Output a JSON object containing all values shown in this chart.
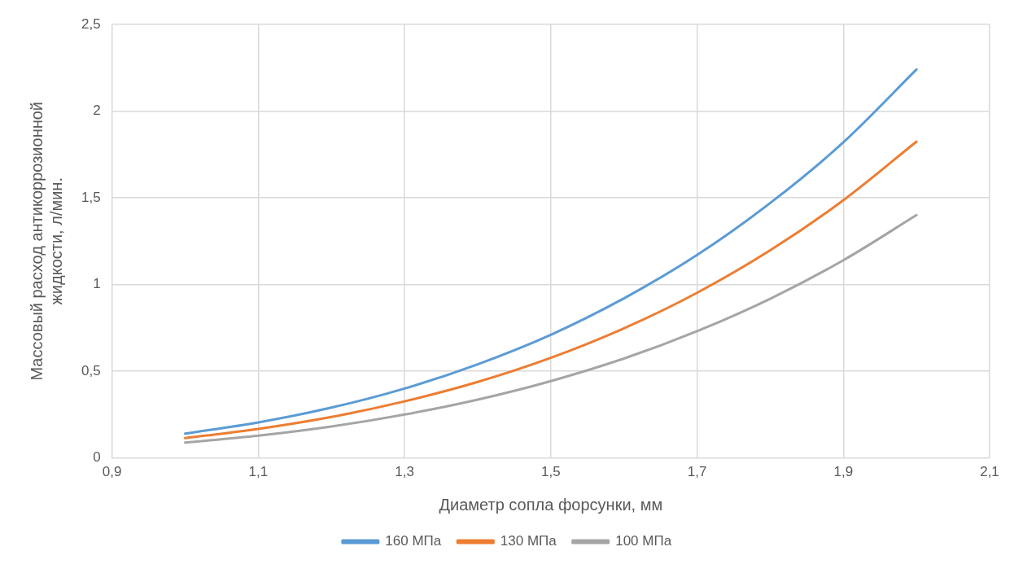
{
  "chart_data": {
    "type": "line",
    "xlabel": "Диаметр сопла форсунки, мм",
    "ylabel": "Массовый расход антикоррозионной жидкости, л/мин.",
    "x": [
      1.0,
      1.1,
      1.2,
      1.3,
      1.4,
      1.5,
      1.6,
      1.7,
      1.8,
      1.9,
      2.0
    ],
    "series": [
      {
        "name": "160 МПа",
        "color": "#5b9bd5",
        "values": [
          0.14,
          0.205,
          0.29,
          0.4,
          0.54,
          0.71,
          0.92,
          1.17,
          1.47,
          1.82,
          2.24
        ]
      },
      {
        "name": "130 МПа",
        "color": "#ed7d31",
        "values": [
          0.114,
          0.167,
          0.236,
          0.326,
          0.438,
          0.577,
          0.747,
          0.952,
          1.197,
          1.486,
          1.824
        ]
      },
      {
        "name": "100 МПа",
        "color": "#a5a5a5",
        "values": [
          0.088,
          0.128,
          0.181,
          0.25,
          0.336,
          0.443,
          0.573,
          0.731,
          0.918,
          1.14,
          1.4
        ]
      }
    ],
    "xlim": [
      0.9,
      2.1
    ],
    "xticks": [
      {
        "value": 0.9,
        "label": "0,9"
      },
      {
        "value": 1.1,
        "label": "1,1"
      },
      {
        "value": 1.3,
        "label": "1,3"
      },
      {
        "value": 1.5,
        "label": "1,5"
      },
      {
        "value": 1.7,
        "label": "1,7"
      },
      {
        "value": 1.9,
        "label": "1,9"
      },
      {
        "value": 2.1,
        "label": "2,1"
      }
    ],
    "ylim": [
      0,
      2.5
    ],
    "yticks": [
      0,
      {
        "value": 0.5,
        "label": "0,5"
      },
      1,
      {
        "value": 1.5,
        "label": "1,5"
      },
      2,
      {
        "value": 2.5,
        "label": "2,5"
      }
    ],
    "grid": true,
    "legend": "bottom",
    "marker": "none",
    "line_style": "solid"
  }
}
